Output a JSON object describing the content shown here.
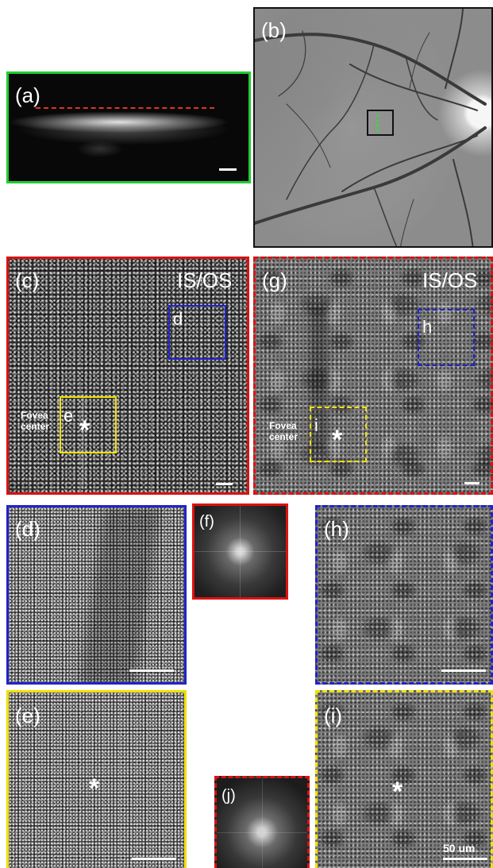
{
  "panel_a": {
    "label": "(a)"
  },
  "panel_b": {
    "label": "(b)"
  },
  "panel_c": {
    "label": "(c)",
    "layer": "IS/OS",
    "box_d": "d",
    "box_e": "e",
    "fovea_line1": "Fovea",
    "fovea_line2": "center",
    "asterisk": "*"
  },
  "panel_g": {
    "label": "(g)",
    "layer": "IS/OS",
    "box_h": "h",
    "box_i": "i",
    "fovea_line1": "Fovea",
    "fovea_line2": "center",
    "asterisk": "*"
  },
  "panel_d": {
    "label": "(d)"
  },
  "panel_f": {
    "label": "(f)"
  },
  "panel_h": {
    "label": "(h)"
  },
  "panel_e": {
    "label": "(e)",
    "asterisk": "*"
  },
  "panel_j": {
    "label": "(j)"
  },
  "panel_i": {
    "label": "(i)",
    "asterisk": "*",
    "scale_text": "50 um"
  },
  "colors": {
    "green": "#22cc33",
    "black": "#111111",
    "red": "#dd1111",
    "blue": "#2222cc",
    "yellow": "#f0e000",
    "marker": "#dd3333",
    "dot": "#33dd33"
  }
}
